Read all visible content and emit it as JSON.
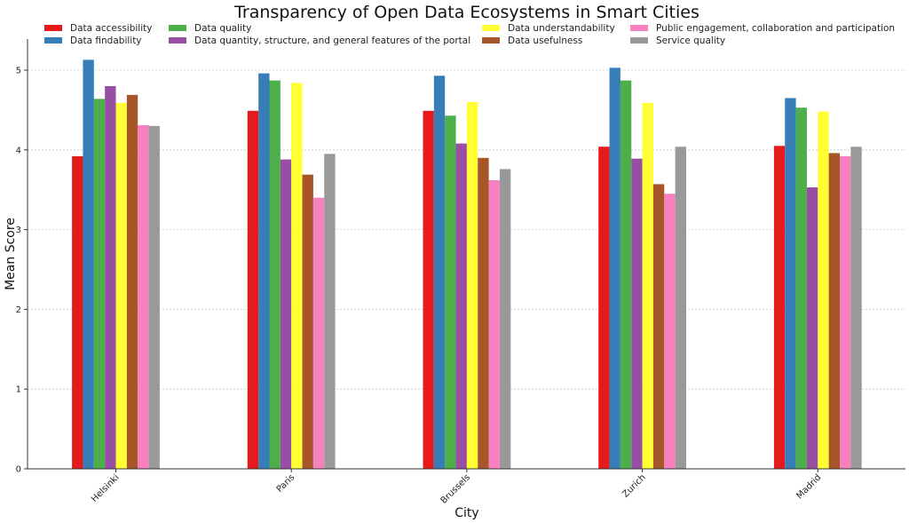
{
  "chart_data": {
    "type": "bar",
    "title": "Transparency of Open Data Ecosystems in Smart Cities",
    "xlabel": "City",
    "ylabel": "Mean Score",
    "ylim": [
      0,
      5.39
    ],
    "yticks": [
      "0",
      "1",
      "2",
      "3",
      "4",
      "5"
    ],
    "grid": "horizontal dotted",
    "legend_placement": "top",
    "categories": [
      "Helsinki",
      "Paris",
      "Brussels",
      "Zurich",
      "Madrid"
    ],
    "series": [
      {
        "name": "Data accessibility",
        "color": "#e41a1c",
        "values": [
          3.92,
          4.49,
          4.49,
          4.04,
          4.05
        ]
      },
      {
        "name": "Data findability",
        "color": "#377eb8",
        "values": [
          5.13,
          4.96,
          4.93,
          5.03,
          4.65
        ]
      },
      {
        "name": "Data quality",
        "color": "#4daf4a",
        "values": [
          4.64,
          4.87,
          4.43,
          4.87,
          4.53
        ]
      },
      {
        "name": "Data quantity, structure, and general features of the portal",
        "color": "#984ea3",
        "values": [
          4.8,
          3.88,
          4.08,
          3.89,
          3.53
        ]
      },
      {
        "name": "Data understandability",
        "color": "#ffff33",
        "values": [
          4.59,
          4.84,
          4.6,
          4.59,
          4.48
        ]
      },
      {
        "name": "Data usefulness",
        "color": "#a65628",
        "values": [
          4.69,
          3.69,
          3.9,
          3.57,
          3.96
        ]
      },
      {
        "name": "Public engagement, collaboration and participation",
        "color": "#f781bf",
        "values": [
          4.31,
          3.4,
          3.62,
          3.45,
          3.92
        ]
      },
      {
        "name": "Service quality",
        "color": "#999999",
        "values": [
          4.3,
          3.95,
          3.76,
          4.04,
          4.04
        ]
      }
    ]
  }
}
